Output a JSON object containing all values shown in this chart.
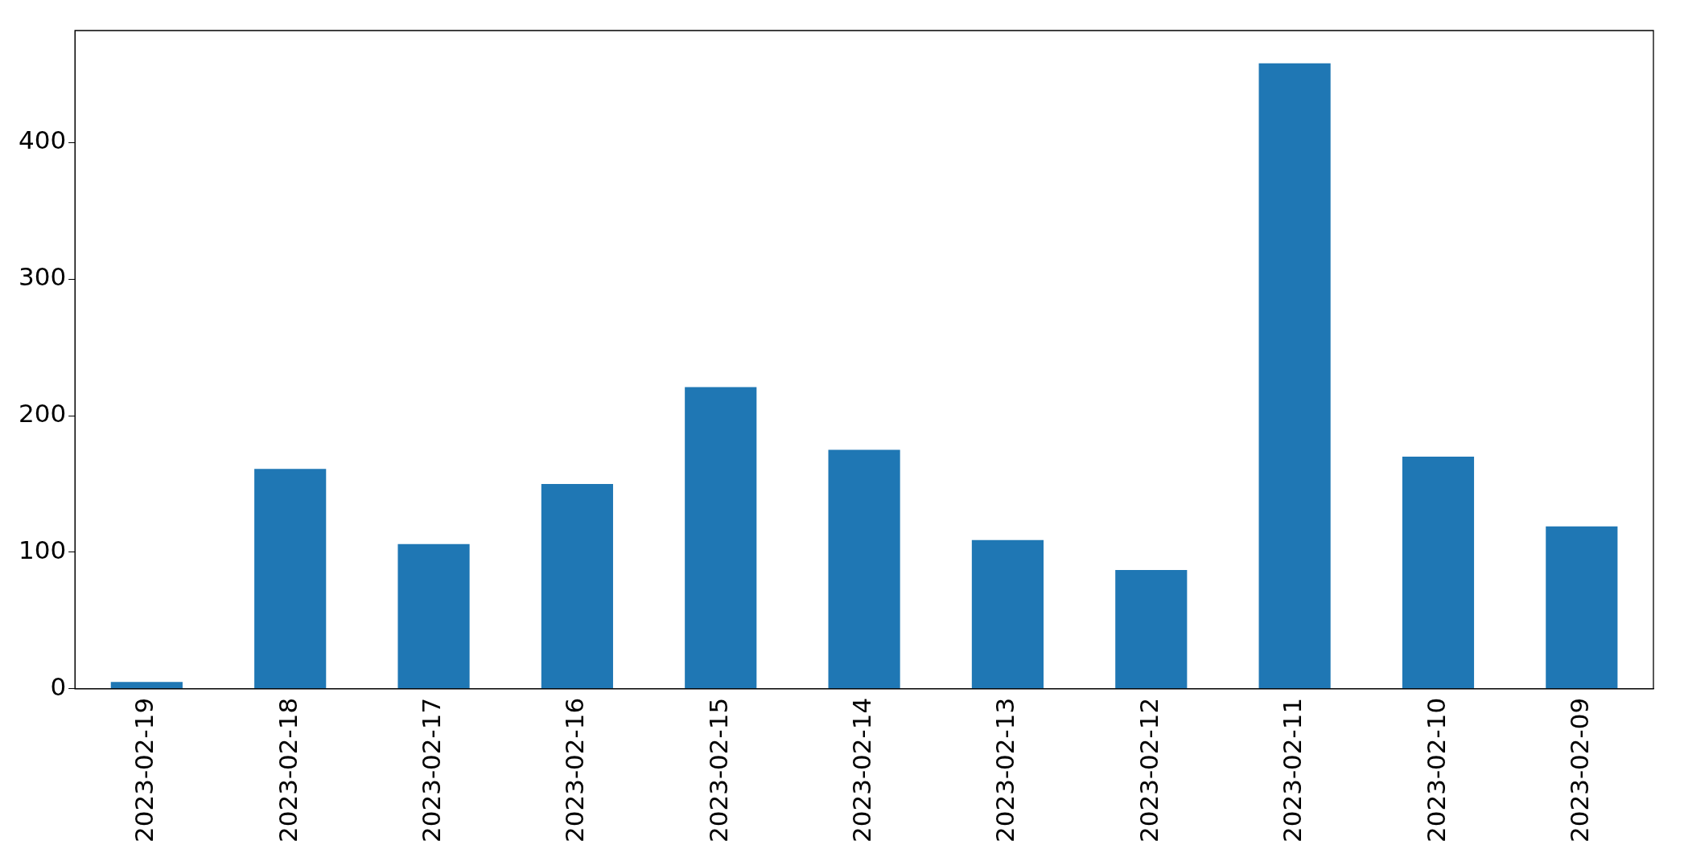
{
  "chart_data": {
    "type": "bar",
    "categories": [
      "2023-02-19",
      "2023-02-18",
      "2023-02-17",
      "2023-02-16",
      "2023-02-15",
      "2023-02-14",
      "2023-02-13",
      "2023-02-12",
      "2023-02-11",
      "2023-02-10",
      "2023-02-09"
    ],
    "values": [
      5,
      161,
      106,
      150,
      221,
      175,
      109,
      87,
      458,
      170,
      119
    ],
    "color": "#1f77b4",
    "ylim": [
      0,
      482
    ],
    "yticks": [
      0,
      100,
      200,
      300,
      400
    ],
    "grid": false,
    "legend": false
  }
}
